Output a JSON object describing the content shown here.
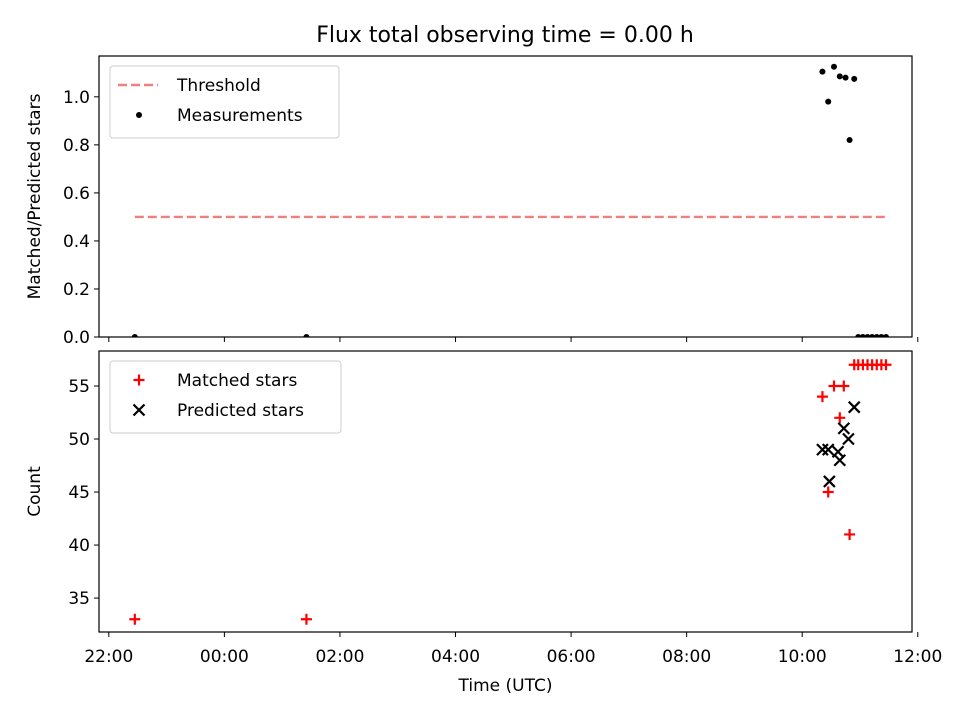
{
  "title": "Flux total observing time = 0.00 h",
  "chart_data": [
    {
      "id": "top",
      "type": "scatter",
      "ylabel": "Matched/Predicted stars",
      "xlim": [
        -2.17,
        11.9
      ],
      "ylim": [
        0,
        1.17
      ],
      "yticks": [
        0.0,
        0.2,
        0.4,
        0.6,
        0.8,
        1.0
      ],
      "ytick_labels": [
        "0.0",
        "0.2",
        "0.4",
        "0.6",
        "0.8",
        "1.0"
      ],
      "legend_position": "upper-left",
      "threshold": {
        "name": "Threshold",
        "value": 0.5,
        "x_range": [
          -1.55,
          11.5
        ],
        "color": "#f08080"
      },
      "series": [
        {
          "name": "Measurements",
          "marker": "dot",
          "color": "#000000",
          "points": [
            [
              -1.55,
              0.0
            ],
            [
              1.42,
              0.0
            ],
            [
              10.35,
              1.105
            ],
            [
              10.45,
              0.98
            ],
            [
              10.55,
              1.125
            ],
            [
              10.65,
              1.085
            ],
            [
              10.75,
              1.08
            ],
            [
              10.82,
              0.82
            ],
            [
              10.9,
              1.075
            ],
            [
              10.97,
              0.0
            ],
            [
              11.05,
              0.0
            ],
            [
              11.13,
              0.0
            ],
            [
              11.21,
              0.0
            ],
            [
              11.29,
              0.0
            ],
            [
              11.37,
              0.0
            ],
            [
              11.45,
              0.0
            ]
          ]
        }
      ]
    },
    {
      "id": "bottom",
      "type": "scatter",
      "ylabel": "Count",
      "xlabel": "Time (UTC)",
      "xlim": [
        -2.17,
        11.9
      ],
      "ylim": [
        31.8,
        58.3
      ],
      "yticks": [
        35,
        40,
        45,
        50,
        55
      ],
      "ytick_labels": [
        "35",
        "40",
        "45",
        "50",
        "55"
      ],
      "xticks": [
        -2,
        0,
        2,
        4,
        6,
        8,
        10,
        12
      ],
      "xtick_labels": [
        "22:00",
        "00:00",
        "02:00",
        "04:00",
        "06:00",
        "08:00",
        "10:00",
        "12:00"
      ],
      "legend_position": "upper-left",
      "series": [
        {
          "name": "Matched stars",
          "marker": "plus",
          "color": "#ff0000",
          "points": [
            [
              -1.55,
              33
            ],
            [
              1.42,
              33
            ],
            [
              10.35,
              54
            ],
            [
              10.45,
              45
            ],
            [
              10.55,
              55
            ],
            [
              10.65,
              52
            ],
            [
              10.72,
              55
            ],
            [
              10.82,
              41
            ],
            [
              10.9,
              57
            ],
            [
              10.97,
              57
            ],
            [
              11.05,
              57
            ],
            [
              11.13,
              57
            ],
            [
              11.21,
              57
            ],
            [
              11.29,
              57
            ],
            [
              11.37,
              57
            ],
            [
              11.45,
              57
            ]
          ]
        },
        {
          "name": "Predicted stars",
          "marker": "x",
          "color": "#000000",
          "points": [
            [
              10.35,
              49
            ],
            [
              10.45,
              49
            ],
            [
              10.47,
              46
            ],
            [
              10.62,
              48.8
            ],
            [
              10.65,
              48
            ],
            [
              10.72,
              51
            ],
            [
              10.8,
              50
            ],
            [
              10.9,
              53
            ]
          ]
        }
      ]
    }
  ]
}
